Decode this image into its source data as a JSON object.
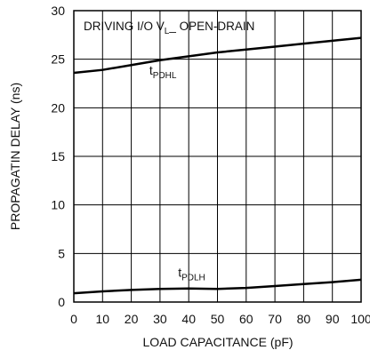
{
  "chart_data": {
    "type": "line",
    "title": "DRIVING I/O V",
    "title_sub": "L",
    "title_end": "_ OPEN-DRAIN",
    "x_label": "LOAD CAPACITANCE (pF)",
    "y_label": "PROPAGATIN DELAY (ns)",
    "x": [
      0,
      10,
      20,
      30,
      40,
      50,
      60,
      70,
      80,
      90,
      100
    ],
    "series": [
      {
        "name": "t",
        "name_sub": "PDHL",
        "color": "#000000",
        "values": [
          23.6,
          23.9,
          24.4,
          24.9,
          25.3,
          25.7,
          26.0,
          26.3,
          26.6,
          26.9,
          27.2
        ]
      },
      {
        "name": "t",
        "name_sub": "PDLH",
        "color": "#000000",
        "values": [
          0.9,
          1.1,
          1.25,
          1.35,
          1.4,
          1.35,
          1.45,
          1.65,
          1.85,
          2.05,
          2.3
        ]
      }
    ],
    "xlim": [
      0,
      100
    ],
    "xticks": [
      0,
      10,
      20,
      30,
      40,
      50,
      60,
      70,
      80,
      90,
      100
    ],
    "ylim": [
      0,
      30
    ],
    "yticks": [
      0,
      5,
      10,
      15,
      20,
      25,
      30
    ],
    "grid": true
  }
}
